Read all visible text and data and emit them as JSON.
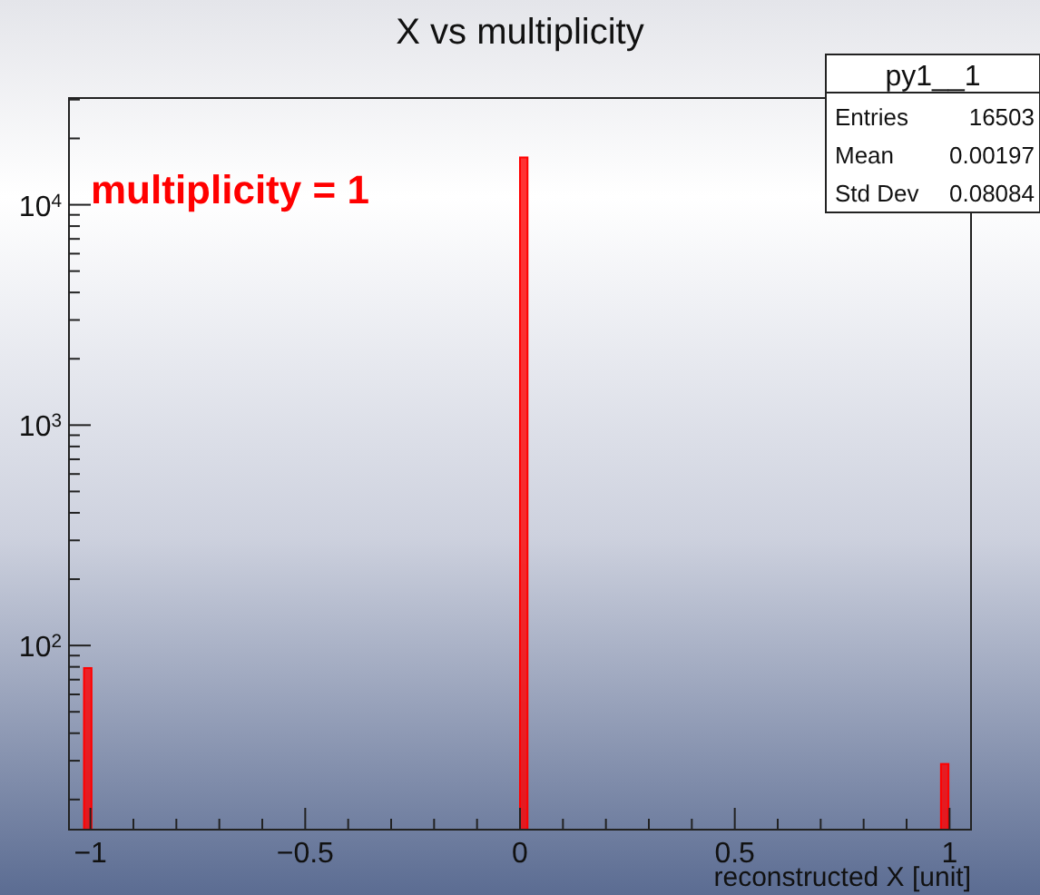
{
  "chart_data": {
    "type": "histogram",
    "title": "X vs multiplicity",
    "xlabel": "reconstructed X [unit]",
    "bins": [
      -1.015,
      -0.9975,
      0,
      0.0175,
      0.98,
      0.9975
    ],
    "values": [
      79,
      null,
      16395,
      null,
      29
    ],
    "color": "#ff0000",
    "log": "y",
    "grid": false,
    "xlim": [
      -1.05,
      1.05
    ],
    "xticks": [
      {
        "value": -1,
        "label": "−1"
      },
      {
        "value": -0.9,
        "label": null
      },
      {
        "value": -0.8,
        "label": null
      },
      {
        "value": -0.7,
        "label": null
      },
      {
        "value": -0.6,
        "label": null
      },
      {
        "value": -0.5,
        "label": "−0.5"
      },
      {
        "value": -0.4,
        "label": null
      },
      {
        "value": -0.3,
        "label": null
      },
      {
        "value": -0.2,
        "label": null
      },
      {
        "value": -0.1,
        "label": null
      },
      0,
      {
        "value": 0.1,
        "label": null
      },
      {
        "value": 0.2,
        "label": null
      },
      {
        "value": 0.3,
        "label": null
      },
      {
        "value": 0.4,
        "label": null
      },
      0.5,
      {
        "value": 0.6,
        "label": null
      },
      {
        "value": 0.7,
        "label": null
      },
      {
        "value": 0.8,
        "label": null
      },
      {
        "value": 0.9,
        "label": null
      },
      1
    ],
    "ylim": [
      14.6,
      30500
    ],
    "yticks": [
      {
        "value": 20,
        "label": null
      },
      {
        "value": 30,
        "label": null
      },
      {
        "value": 40,
        "label": null
      },
      {
        "value": 50,
        "label": null
      },
      {
        "value": 60,
        "label": null
      },
      {
        "value": 70,
        "label": null
      },
      {
        "value": 80,
        "label": null
      },
      {
        "value": 90,
        "label": null
      },
      {
        "value": 100,
        "label": "10$^{2}$"
      },
      {
        "value": 200,
        "label": null
      },
      {
        "value": 300,
        "label": null
      },
      {
        "value": 400,
        "label": null
      },
      {
        "value": 500,
        "label": null
      },
      {
        "value": 600,
        "label": null
      },
      {
        "value": 700,
        "label": null
      },
      {
        "value": 800,
        "label": null
      },
      {
        "value": 900,
        "label": null
      },
      {
        "value": 1000,
        "label": "10$^{3}$"
      },
      {
        "value": 2000,
        "label": null
      },
      {
        "value": 3000,
        "label": null
      },
      {
        "value": 4000,
        "label": null
      },
      {
        "value": 5000,
        "label": null
      },
      {
        "value": 6000,
        "label": null
      },
      {
        "value": 7000,
        "label": null
      },
      {
        "value": 8000,
        "label": null
      },
      {
        "value": 9000,
        "label": null
      },
      {
        "value": 10000,
        "label": "10$^{4}$"
      },
      {
        "value": 20000,
        "label": null
      },
      {
        "value": 30000,
        "label": null
      }
    ],
    "annotations": [
      "multiplicity = 1",
      "py1__1",
      "Entries",
      "16503",
      "Mean",
      "0.00197",
      "Std Dev",
      "0.08084"
    ]
  }
}
